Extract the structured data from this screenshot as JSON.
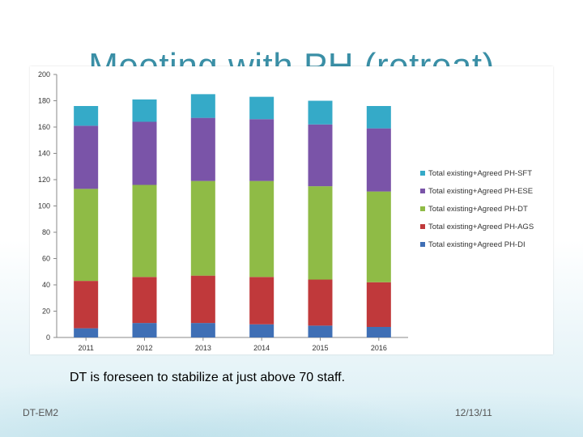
{
  "slide": {
    "title": "Meeting with PH (retreat)",
    "body_text": "DT is foreseen to stabilize at just above 70 staff.",
    "footer_left": "DT-EM2",
    "footer_right": "12/13/11"
  },
  "chart_data": {
    "type": "bar",
    "stacked": true,
    "categories": [
      "2011",
      "2012",
      "2013",
      "2014",
      "2015",
      "2016"
    ],
    "ylim": [
      0,
      200
    ],
    "yticks": [
      0,
      20,
      40,
      60,
      80,
      100,
      120,
      140,
      160,
      180,
      200
    ],
    "grid": false,
    "legend_position": "right",
    "series": [
      {
        "name": "Total existing+Agreed PH-DI",
        "color": "#3f6fb5",
        "values": [
          7,
          11,
          11,
          10,
          9,
          8
        ]
      },
      {
        "name": "Total existing+Agreed PH-AGS",
        "color": "#c0393b",
        "values": [
          36,
          35,
          36,
          36,
          35,
          34
        ]
      },
      {
        "name": "Total existing+Agreed PH-DT",
        "color": "#8fbb46",
        "values": [
          70,
          70,
          72,
          73,
          71,
          69
        ]
      },
      {
        "name": "Total existing+Agreed PH-ESE",
        "color": "#7a54a8",
        "values": [
          48,
          48,
          48,
          47,
          47,
          48
        ]
      },
      {
        "name": "Total existing+Agreed PH-SFT",
        "color": "#35aac8",
        "values": [
          15,
          17,
          18,
          17,
          18,
          17
        ]
      }
    ]
  }
}
